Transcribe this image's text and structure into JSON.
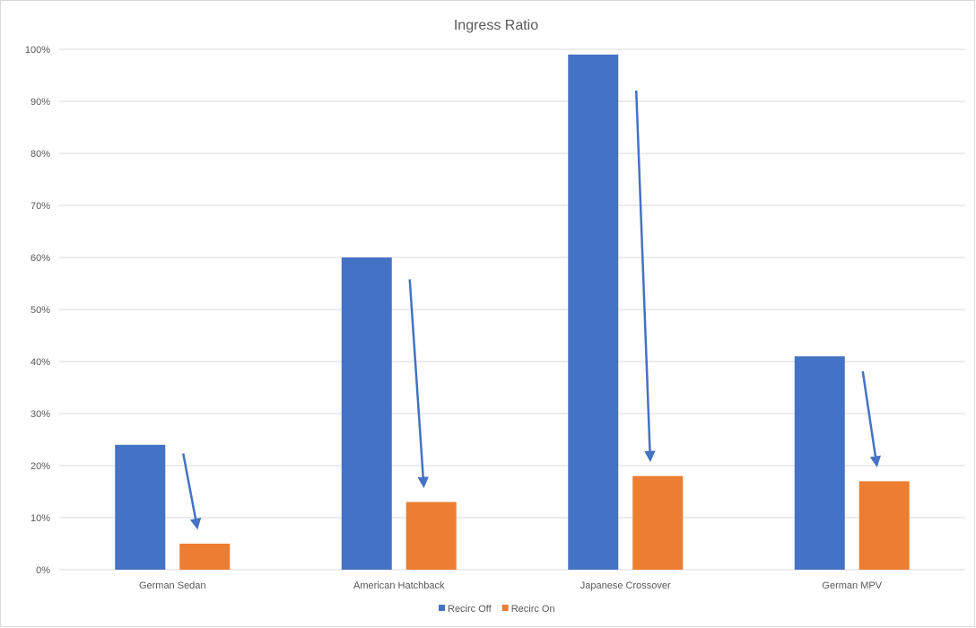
{
  "chart_data": {
    "type": "bar",
    "title": "Ingress Ratio",
    "categories": [
      "German Sedan",
      "American Hatchback",
      "Japanese Crossover",
      "German MPV"
    ],
    "series": [
      {
        "name": "Recirc Off",
        "values": [
          24,
          60,
          99,
          41
        ],
        "color": "#4472C4"
      },
      {
        "name": "Recirc On",
        "values": [
          5,
          13,
          18,
          17
        ],
        "color": "#ED7D31"
      }
    ],
    "ylim": [
      0,
      100
    ],
    "yticks": [
      "0%",
      "10%",
      "20%",
      "30%",
      "40%",
      "50%",
      "60%",
      "70%",
      "80%",
      "90%",
      "100%"
    ],
    "grid": true,
    "legend": "bottom",
    "annotations": "blue arrows from each Recirc Off bar pointing down to the corresponding Recirc On bar",
    "arrow_color": "#4472C4",
    "grid_color": "#d9d9d9"
  }
}
